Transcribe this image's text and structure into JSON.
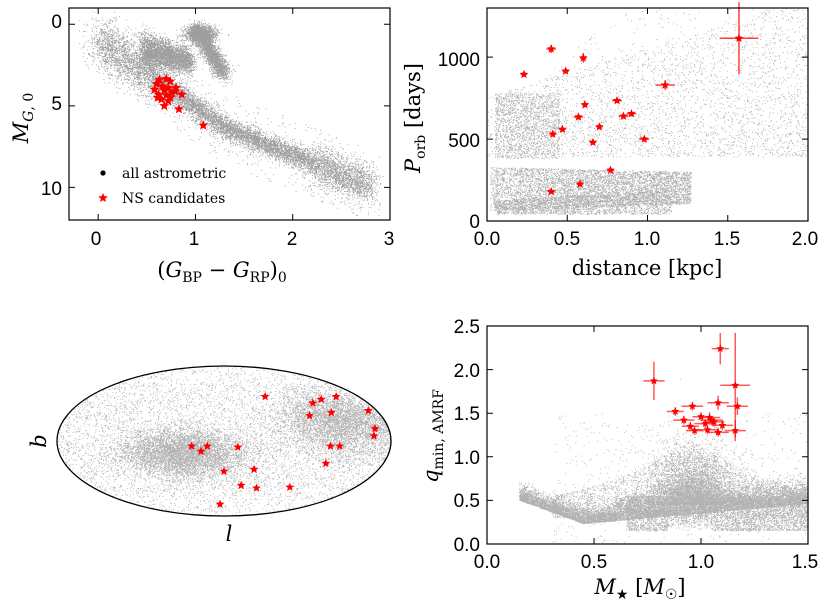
{
  "chart_data": [
    {
      "type": "scatter",
      "panel": "cmd",
      "xlabel": "(G_BP − G_RP)_0",
      "ylabel": "M_G,0",
      "xlim": [
        -0.3,
        3.0
      ],
      "ylim": [
        12.0,
        -1.0
      ],
      "y_inverted": true,
      "xticks": [
        "0",
        "1",
        "2",
        "3"
      ],
      "yticks": [
        "0",
        "5",
        "10"
      ],
      "legend": {
        "placement": "lower-left",
        "entries": [
          "all astrometric",
          "NS candidates"
        ]
      },
      "series": [
        {
          "name": "NS candidates",
          "color": "#ff0000",
          "marker": "star",
          "points": [
            [
              0.63,
              3.4
            ],
            [
              0.7,
              3.35
            ],
            [
              0.74,
              3.5
            ],
            [
              0.6,
              3.65
            ],
            [
              0.66,
              3.8
            ],
            [
              0.72,
              3.9
            ],
            [
              0.58,
              4.0
            ],
            [
              0.68,
              4.05
            ],
            [
              0.8,
              3.9
            ],
            [
              0.62,
              4.3
            ],
            [
              0.7,
              4.35
            ],
            [
              0.76,
              4.2
            ],
            [
              0.86,
              4.3
            ],
            [
              0.65,
              4.6
            ],
            [
              0.72,
              4.7
            ],
            [
              0.68,
              5.0
            ],
            [
              0.83,
              5.2
            ],
            [
              1.08,
              6.2
            ],
            [
              0.74,
              4.5
            ],
            [
              0.79,
              4.1
            ],
            [
              0.61,
              4.5
            ]
          ]
        }
      ]
    },
    {
      "type": "scatter",
      "panel": "period-distance",
      "xlabel": "distance [kpc]",
      "ylabel": "P_orb [days]",
      "xlim": [
        0.0,
        2.0
      ],
      "ylim": [
        0,
        1300
      ],
      "xticks": [
        "0.0",
        "0.5",
        "1.0",
        "1.5",
        "2.0"
      ],
      "yticks": [
        "0",
        "500",
        "1000"
      ],
      "series": [
        {
          "name": "NS candidates",
          "color": "#ff0000",
          "marker": "star",
          "points": [
            {
              "x": 0.4,
              "y": 1050,
              "xerr": 0.03,
              "yerr": 25
            },
            {
              "x": 0.23,
              "y": 895,
              "xerr": 0.02,
              "yerr": 15
            },
            {
              "x": 0.49,
              "y": 915,
              "xerr": 0.02,
              "yerr": 15
            },
            {
              "x": 0.6,
              "y": 995,
              "xerr": 0.02,
              "yerr": 30
            },
            {
              "x": 1.57,
              "y": 1115,
              "xerr": 0.12,
              "yerr": 220
            },
            {
              "x": 1.11,
              "y": 830,
              "xerr": 0.06,
              "yerr": 30
            },
            {
              "x": 0.61,
              "y": 710,
              "xerr": 0.02,
              "yerr": 15
            },
            {
              "x": 0.57,
              "y": 635,
              "xerr": 0.03,
              "yerr": 15
            },
            {
              "x": 0.81,
              "y": 735,
              "xerr": 0.03,
              "yerr": 15
            },
            {
              "x": 0.85,
              "y": 640,
              "xerr": 0.03,
              "yerr": 15
            },
            {
              "x": 0.9,
              "y": 655,
              "xerr": 0.03,
              "yerr": 15
            },
            {
              "x": 0.47,
              "y": 560,
              "xerr": 0.02,
              "yerr": 15
            },
            {
              "x": 0.41,
              "y": 530,
              "xerr": 0.02,
              "yerr": 15
            },
            {
              "x": 0.7,
              "y": 575,
              "xerr": 0.02,
              "yerr": 15
            },
            {
              "x": 0.66,
              "y": 480,
              "xerr": 0.02,
              "yerr": 15
            },
            {
              "x": 0.98,
              "y": 500,
              "xerr": 0.03,
              "yerr": 15
            },
            {
              "x": 0.77,
              "y": 310,
              "xerr": 0.02,
              "yerr": 10
            },
            {
              "x": 0.58,
              "y": 225,
              "xerr": 0.02,
              "yerr": 10
            },
            {
              "x": 0.4,
              "y": 180,
              "xerr": 0.02,
              "yerr": 10
            }
          ]
        }
      ]
    },
    {
      "type": "scatter",
      "panel": "sky",
      "xlabel": "l",
      "ylabel": "b",
      "projection": "mollweide",
      "series": [
        {
          "name": "NS candidates",
          "color": "#ff0000",
          "marker": "star",
          "points": [
            [
              -170,
              30
            ],
            [
              -150,
              45
            ],
            [
              -126,
              42
            ],
            [
              -111,
              38
            ],
            [
              -55,
              45
            ],
            [
              -125,
              28
            ],
            [
              -98,
              25
            ],
            [
              -165,
              12
            ],
            [
              -162,
              5
            ],
            [
              -115,
              -5
            ],
            [
              -125,
              -5
            ],
            [
              -115,
              -22
            ],
            [
              -90,
              -47
            ],
            [
              -45,
              -48
            ],
            [
              -35,
              -28
            ],
            [
              -15,
              -6
            ],
            [
              -23,
              -45
            ],
            [
              0,
              -30
            ],
            [
              18,
              -5
            ],
            [
              25,
              -10
            ],
            [
              35,
              -5
            ],
            [
              8,
              -68
            ]
          ]
        }
      ]
    },
    {
      "type": "scatter",
      "panel": "qmin-mass",
      "xlabel": "M_★ [M_☉]",
      "ylabel": "q_min, AMRF",
      "xlim": [
        0.0,
        1.5
      ],
      "ylim": [
        0.0,
        2.5
      ],
      "xticks": [
        "0.0",
        "0.5",
        "1.0",
        "1.5"
      ],
      "yticks": [
        "0.0",
        "0.5",
        "1.0",
        "1.5",
        "2.0",
        "2.5"
      ],
      "series": [
        {
          "name": "NS candidates",
          "color": "#ff0000",
          "marker": "star",
          "points": [
            {
              "x": 0.78,
              "y": 1.87,
              "xerr": 0.05,
              "yerr": 0.22
            },
            {
              "x": 1.09,
              "y": 2.24,
              "xerr": 0.04,
              "yerr": 0.18
            },
            {
              "x": 1.16,
              "y": 1.82,
              "xerr": 0.07,
              "yerr": 0.6
            },
            {
              "x": 0.88,
              "y": 1.52,
              "xerr": 0.04,
              "yerr": 0.05
            },
            {
              "x": 0.96,
              "y": 1.58,
              "xerr": 0.05,
              "yerr": 0.05
            },
            {
              "x": 1.08,
              "y": 1.62,
              "xerr": 0.05,
              "yerr": 0.08
            },
            {
              "x": 1.17,
              "y": 1.58,
              "xerr": 0.05,
              "yerr": 0.1
            },
            {
              "x": 0.92,
              "y": 1.42,
              "xerr": 0.05,
              "yerr": 0.05
            },
            {
              "x": 1.0,
              "y": 1.46,
              "xerr": 0.04,
              "yerr": 0.05
            },
            {
              "x": 1.04,
              "y": 1.45,
              "xerr": 0.05,
              "yerr": 0.06
            },
            {
              "x": 1.06,
              "y": 1.4,
              "xerr": 0.05,
              "yerr": 0.05
            },
            {
              "x": 1.02,
              "y": 1.38,
              "xerr": 0.05,
              "yerr": 0.05
            },
            {
              "x": 0.95,
              "y": 1.35,
              "xerr": 0.04,
              "yerr": 0.05
            },
            {
              "x": 1.1,
              "y": 1.36,
              "xerr": 0.05,
              "yerr": 0.06
            },
            {
              "x": 1.03,
              "y": 1.31,
              "xerr": 0.05,
              "yerr": 0.05
            },
            {
              "x": 0.97,
              "y": 1.3,
              "xerr": 0.04,
              "yerr": 0.05
            },
            {
              "x": 1.08,
              "y": 1.28,
              "xerr": 0.05,
              "yerr": 0.05
            },
            {
              "x": 1.16,
              "y": 1.3,
              "xerr": 0.05,
              "yerr": 0.12
            },
            {
              "x": 1.05,
              "y": 1.42,
              "xerr": 0.05,
              "yerr": 0.05
            }
          ]
        }
      ]
    }
  ]
}
